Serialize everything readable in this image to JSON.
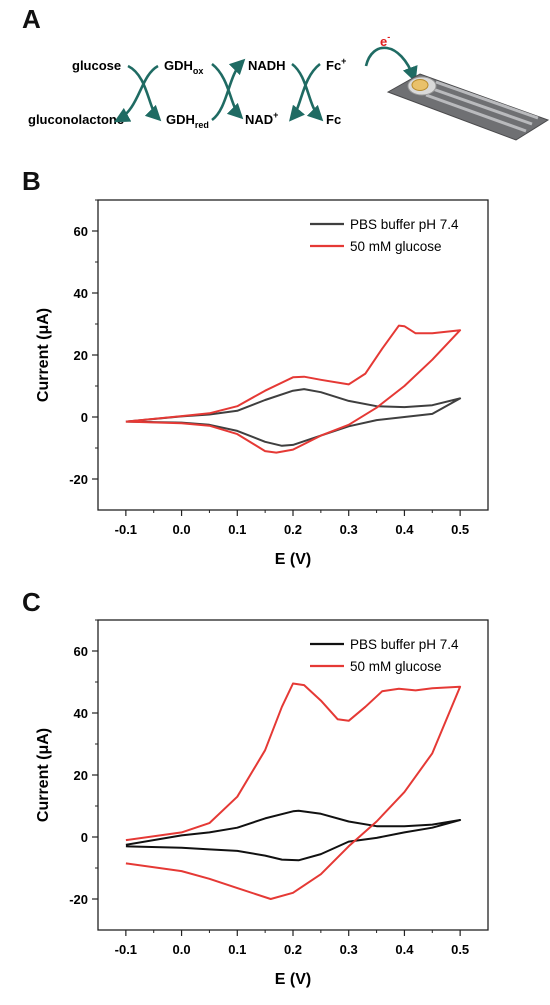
{
  "panels": {
    "a": "A",
    "b": "B",
    "c": "C"
  },
  "scheme": {
    "glucose": "glucose",
    "gluconolactone": "gluconolactone",
    "gdh_ox": "GDH",
    "gdh_ox_sub": "ox",
    "gdh_red": "GDH",
    "gdh_red_sub": "red",
    "nadh": "NADH",
    "nad": "NAD",
    "nad_sup": "+",
    "fc_plus": "Fc",
    "fc_plus_sup": "+",
    "fc": "Fc",
    "electron": "e",
    "electron_sup": "-",
    "arrow_color": "#1f6b63",
    "electron_color": "#e01b1b"
  },
  "chart_data": [
    {
      "type": "line",
      "panel": "B",
      "xlabel": "E (V)",
      "ylabel": "Current (μA)",
      "xlim": [
        -0.15,
        0.55
      ],
      "ylim": [
        -30,
        70
      ],
      "xticks": [
        "-0.1",
        "0.0",
        "0.1",
        "0.2",
        "0.3",
        "0.4",
        "0.5"
      ],
      "yticks": [
        "-20",
        "0",
        "20",
        "40",
        "60"
      ],
      "legend_position": "top-right",
      "series": [
        {
          "name": "PBS buffer pH 7.4",
          "color": "#3f3f3f",
          "x": [
            -0.1,
            0.0,
            0.05,
            0.1,
            0.15,
            0.2,
            0.22,
            0.25,
            0.3,
            0.35,
            0.4,
            0.45,
            0.5,
            0.5,
            0.45,
            0.4,
            0.35,
            0.3,
            0.25,
            0.2,
            0.18,
            0.15,
            0.1,
            0.05,
            0.0,
            -0.1
          ],
          "y": [
            -1.5,
            0.2,
            0.8,
            2.0,
            5.5,
            8.5,
            9.0,
            8.0,
            5.2,
            3.5,
            3.2,
            3.8,
            6.0,
            6.0,
            1.0,
            0.0,
            -1.0,
            -3.0,
            -6.0,
            -9.0,
            -9.3,
            -8.0,
            -4.5,
            -2.5,
            -1.8,
            -1.5
          ]
        },
        {
          "name": "50 mM glucose",
          "color": "#e53935",
          "x": [
            -0.1,
            0.0,
            0.05,
            0.1,
            0.15,
            0.2,
            0.22,
            0.25,
            0.3,
            0.33,
            0.36,
            0.39,
            0.4,
            0.42,
            0.45,
            0.5,
            0.5,
            0.45,
            0.4,
            0.35,
            0.3,
            0.25,
            0.2,
            0.17,
            0.15,
            0.1,
            0.05,
            0.0,
            -0.1
          ],
          "y": [
            -1.5,
            0.3,
            1.2,
            3.5,
            8.5,
            12.8,
            13.0,
            12.0,
            10.5,
            14.0,
            22.0,
            29.5,
            29.3,
            27.0,
            27.0,
            28.0,
            28.0,
            18.5,
            10.0,
            3.0,
            -2.5,
            -6.0,
            -10.5,
            -11.5,
            -11.0,
            -5.5,
            -2.8,
            -2.0,
            -1.5
          ]
        }
      ]
    },
    {
      "type": "line",
      "panel": "C",
      "xlabel": "E (V)",
      "ylabel": "Current (μA)",
      "xlim": [
        -0.15,
        0.55
      ],
      "ylim": [
        -30,
        70
      ],
      "xticks": [
        "-0.1",
        "0.0",
        "0.1",
        "0.2",
        "0.3",
        "0.4",
        "0.5"
      ],
      "yticks": [
        "-20",
        "0",
        "20",
        "40",
        "60"
      ],
      "legend_position": "top-right",
      "series": [
        {
          "name": "PBS buffer pH 7.4",
          "color": "#111111",
          "x": [
            -0.1,
            0.0,
            0.05,
            0.1,
            0.15,
            0.2,
            0.21,
            0.25,
            0.3,
            0.35,
            0.4,
            0.45,
            0.5,
            0.5,
            0.45,
            0.4,
            0.35,
            0.3,
            0.25,
            0.21,
            0.18,
            0.15,
            0.1,
            0.05,
            0.0,
            -0.1
          ],
          "y": [
            -2.5,
            0.5,
            1.5,
            3.0,
            6.0,
            8.3,
            8.5,
            7.5,
            5.0,
            3.5,
            3.5,
            4.0,
            5.5,
            5.5,
            3.0,
            1.5,
            -0.3,
            -1.5,
            -5.5,
            -7.5,
            -7.3,
            -6.0,
            -4.5,
            -4.0,
            -3.5,
            -3.0
          ]
        },
        {
          "name": "50 mM glucose",
          "color": "#e53935",
          "x": [
            -0.1,
            0.0,
            0.05,
            0.1,
            0.15,
            0.18,
            0.2,
            0.22,
            0.25,
            0.28,
            0.3,
            0.33,
            0.36,
            0.39,
            0.42,
            0.45,
            0.5,
            0.5,
            0.45,
            0.4,
            0.35,
            0.3,
            0.25,
            0.2,
            0.16,
            0.1,
            0.05,
            0.0,
            -0.1
          ],
          "y": [
            -1.0,
            1.5,
            4.5,
            13.0,
            28.0,
            42.0,
            49.5,
            49.0,
            44.0,
            38.0,
            37.5,
            42.0,
            47.0,
            47.8,
            47.3,
            48.0,
            48.5,
            48.5,
            27.0,
            14.5,
            5.0,
            -3.0,
            -12.0,
            -18.0,
            -20.0,
            -16.5,
            -13.5,
            -11.0,
            -8.5
          ]
        }
      ]
    }
  ]
}
